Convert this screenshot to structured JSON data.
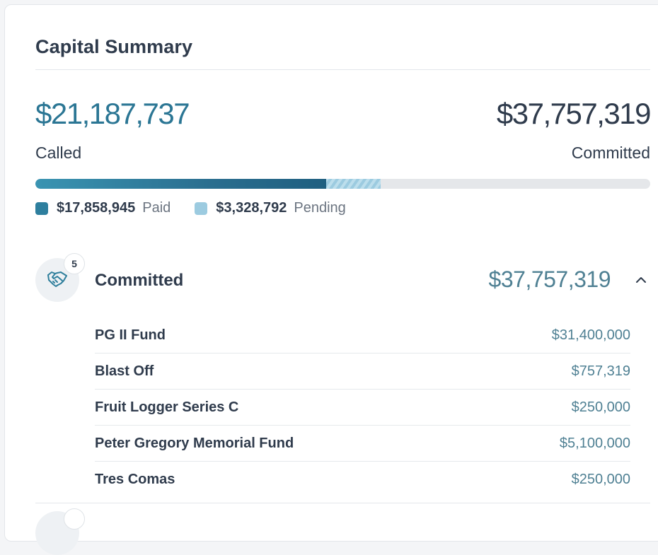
{
  "card": {
    "title": "Capital Summary"
  },
  "summary": {
    "called_amount": "$21,187,737",
    "called_label": "Called",
    "committed_amount": "$37,757,319",
    "committed_label": "Committed"
  },
  "progress": {
    "paid_fraction": 0.473,
    "pending_fraction": 0.088
  },
  "legend": {
    "paid_value": "$17,858,945",
    "paid_label": "Paid",
    "pending_value": "$3,328,792",
    "pending_label": "Pending"
  },
  "group": {
    "icon": "handshake-icon",
    "count": "5",
    "label": "Committed",
    "total": "$37,757,319",
    "expanded": true,
    "items": [
      {
        "name": "PG II Fund",
        "amount": "$31,400,000"
      },
      {
        "name": "Blast Off",
        "amount": "$757,319"
      },
      {
        "name": "Fruit Logger Series C",
        "amount": "$250,000"
      },
      {
        "name": "Peter Gregory Memorial Fund",
        "amount": "$5,100,000"
      },
      {
        "name": "Tres Comas",
        "amount": "$250,000"
      }
    ]
  },
  "colors": {
    "accent": "#2b7694",
    "amount": "#4f8093",
    "paid": "#2e7f9e",
    "pending": "#9ccbe0",
    "text": "#2f3b4c"
  }
}
